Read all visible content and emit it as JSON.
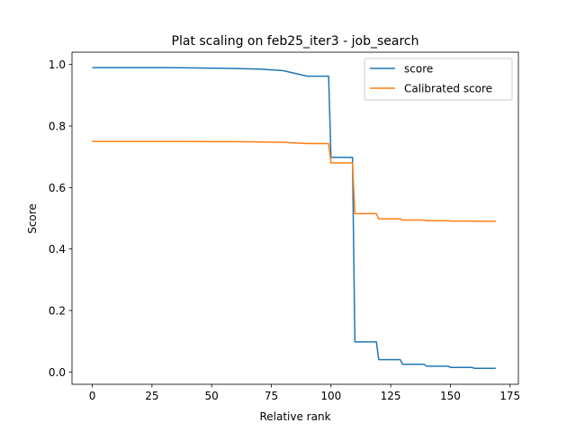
{
  "chart_data": {
    "type": "line",
    "title": "Plat scaling on feb25_iter3 - job_search",
    "xlabel": "Relative rank",
    "ylabel": "Score",
    "xlim": [
      -8.5,
      178.5
    ],
    "ylim": [
      -0.04,
      1.04
    ],
    "x_ticks": [
      0,
      25,
      50,
      75,
      100,
      125,
      150,
      175
    ],
    "x_tick_labels": [
      "0",
      "25",
      "50",
      "75",
      "100",
      "125",
      "150",
      "175"
    ],
    "y_ticks": [
      0.0,
      0.2,
      0.4,
      0.6,
      0.8,
      1.0
    ],
    "y_tick_labels": [
      "0.0",
      "0.2",
      "0.4",
      "0.6",
      "0.8",
      "1.0"
    ],
    "grid": false,
    "legend_position": "top-right",
    "series": [
      {
        "name": "score",
        "color": "#1f77b4",
        "points": [
          [
            0,
            0.99
          ],
          [
            10,
            0.99
          ],
          [
            20,
            0.99
          ],
          [
            30,
            0.99
          ],
          [
            40,
            0.989
          ],
          [
            50,
            0.988
          ],
          [
            60,
            0.987
          ],
          [
            70,
            0.985
          ],
          [
            80,
            0.98
          ],
          [
            90,
            0.962
          ],
          [
            99,
            0.962
          ],
          [
            100,
            0.698
          ],
          [
            109,
            0.698
          ],
          [
            110,
            0.098
          ],
          [
            119,
            0.098
          ],
          [
            120,
            0.04
          ],
          [
            129,
            0.04
          ],
          [
            130,
            0.025
          ],
          [
            139,
            0.025
          ],
          [
            140,
            0.019
          ],
          [
            149,
            0.019
          ],
          [
            150,
            0.015
          ],
          [
            159,
            0.015
          ],
          [
            160,
            0.012
          ],
          [
            169,
            0.012
          ]
        ]
      },
      {
        "name": "Calibrated score",
        "color": "#ff7f0e",
        "points": [
          [
            0,
            0.75
          ],
          [
            10,
            0.75
          ],
          [
            20,
            0.75
          ],
          [
            30,
            0.75
          ],
          [
            40,
            0.75
          ],
          [
            50,
            0.749
          ],
          [
            60,
            0.749
          ],
          [
            70,
            0.748
          ],
          [
            80,
            0.747
          ],
          [
            90,
            0.743
          ],
          [
            99,
            0.743
          ],
          [
            100,
            0.68
          ],
          [
            109,
            0.68
          ],
          [
            110,
            0.515
          ],
          [
            119,
            0.515
          ],
          [
            120,
            0.498
          ],
          [
            129,
            0.498
          ],
          [
            130,
            0.494
          ],
          [
            139,
            0.494
          ],
          [
            140,
            0.492
          ],
          [
            149,
            0.492
          ],
          [
            150,
            0.491
          ],
          [
            159,
            0.491
          ],
          [
            160,
            0.49
          ],
          [
            169,
            0.49
          ]
        ]
      }
    ]
  }
}
